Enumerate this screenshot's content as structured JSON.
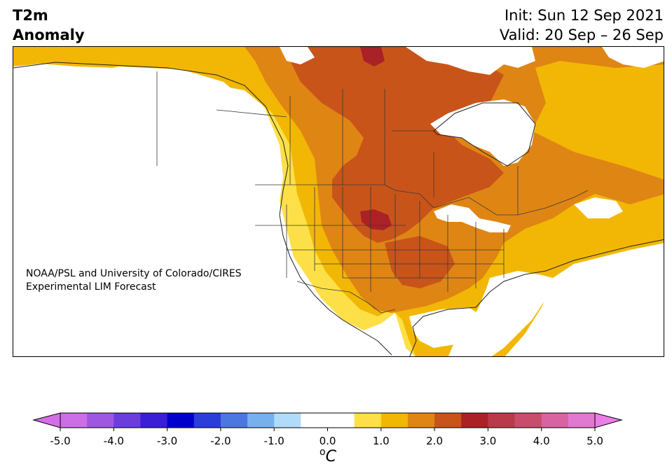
{
  "title": {
    "line1": "T2m",
    "line2": "Anomaly"
  },
  "valid_info": {
    "init": "Init: Sun 12 Sep 2021",
    "valid": "Valid: 20 Sep – 26 Sep"
  },
  "credit": {
    "line1": "NOAA/PSL and University of Colorado/CIRES",
    "line2": "Experimental LIM Forecast"
  },
  "colorbar": {
    "unit": "oC",
    "tick_labels": [
      "-5.0",
      "-4.0",
      "-3.0",
      "-2.0",
      "-1.0",
      "0.0",
      "1.0",
      "2.0",
      "3.0",
      "4.0",
      "5.0"
    ],
    "colors": [
      "#cc6ee6",
      "#9f56e1",
      "#6a3ddc",
      "#3a1fd4",
      "#0000cc",
      "#2a3ed8",
      "#4c77e0",
      "#76b0ef",
      "#b0dcfa",
      "#ffffff",
      "#ffffff",
      "#fde047",
      "#f2b705",
      "#df8514",
      "#c8541a",
      "#aa2225",
      "#b93a4a",
      "#c84c6c",
      "#d962a0",
      "#e278d0"
    ],
    "under_color": "#d46ee8",
    "over_color": "#ea7ee6"
  },
  "map_colors": {
    "ocean": "#ffffff",
    "anom_0_5_1": "#fde047",
    "anom_1_1_5": "#f2b705",
    "anom_1_5_2": "#df8514",
    "anom_2_2_5": "#c8541a",
    "anom_2_5_3": "#aa2225"
  }
}
